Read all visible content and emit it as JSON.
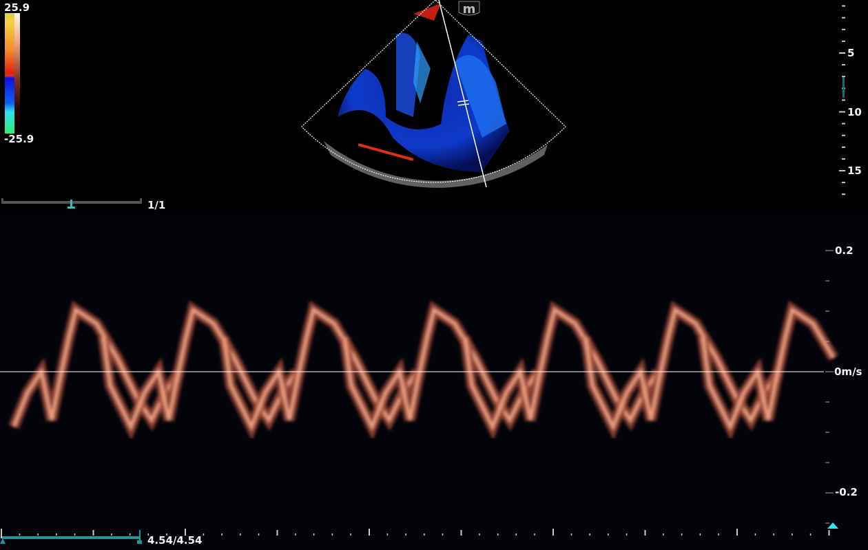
{
  "color_bar": {
    "max_label": "25.9",
    "min_label": "-25.9"
  },
  "logo": {
    "text": "m"
  },
  "depth_scale": {
    "labels": [
      "5",
      "10",
      "15"
    ],
    "values_cm": [
      5,
      10,
      15
    ]
  },
  "cine_top": {
    "label": "1/1"
  },
  "velocity_scale": {
    "labels": [
      "0.2",
      "0m/s",
      "-0.2"
    ],
    "values": [
      0.2,
      0,
      -0.2
    ]
  },
  "cine_bottom": {
    "label": "4.54/4.54",
    "progress": 1.0
  },
  "colors": {
    "accent": "#1a9a9a",
    "marker": "#2fe6f0",
    "trace": "#f08a70"
  }
}
